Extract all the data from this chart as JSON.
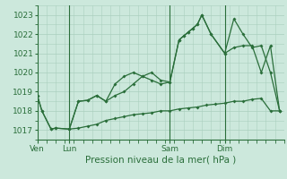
{
  "background_color": "#cce8dc",
  "grid_color": "#aacfbe",
  "line_color": "#2a6e3a",
  "title": "Pression niveau de la mer( hPa )",
  "ylabel_ticks": [
    1017,
    1018,
    1019,
    1020,
    1021,
    1022,
    1023
  ],
  "day_labels": [
    "Ven",
    "Lun",
    "Sam",
    "Dim"
  ],
  "day_positions": [
    0.0,
    3.5,
    14.5,
    20.5
  ],
  "vline_positions": [
    0.0,
    3.5,
    14.5,
    20.5
  ],
  "series1_x": [
    0,
    0.5,
    1.5,
    2.0,
    3.5,
    4.5,
    5.5,
    6.5,
    7.5,
    8.5,
    9.5,
    10.5,
    11.5,
    12.5,
    13.5,
    14.5,
    15.5,
    16.0,
    16.5,
    17.0,
    17.5,
    18.0,
    19.0,
    20.5,
    21.5,
    22.5,
    23.5,
    24.5,
    25.5,
    26.5
  ],
  "series1_y": [
    1018.8,
    1018.0,
    1017.05,
    1017.1,
    1017.05,
    1018.5,
    1018.55,
    1018.8,
    1018.5,
    1019.4,
    1019.8,
    1020.0,
    1019.8,
    1019.6,
    1019.4,
    1019.5,
    1021.7,
    1021.9,
    1022.1,
    1022.3,
    1022.5,
    1023.0,
    1022.0,
    1021.0,
    1022.8,
    1022.0,
    1021.3,
    1021.4,
    1020.0,
    1018.0
  ],
  "series2_x": [
    0,
    0.5,
    1.5,
    2.0,
    3.5,
    4.5,
    5.5,
    6.5,
    7.5,
    8.5,
    9.5,
    10.5,
    11.5,
    12.5,
    13.5,
    14.5,
    15.5,
    16.5,
    17.5,
    18.5,
    19.5,
    20.5,
    21.5,
    22.5,
    23.5,
    24.5,
    25.5,
    26.5
  ],
  "series2_y": [
    1018.8,
    1018.0,
    1017.05,
    1017.1,
    1017.05,
    1017.1,
    1017.2,
    1017.3,
    1017.5,
    1017.6,
    1017.7,
    1017.8,
    1017.85,
    1017.9,
    1018.0,
    1018.0,
    1018.1,
    1018.15,
    1018.2,
    1018.3,
    1018.35,
    1018.4,
    1018.5,
    1018.5,
    1018.6,
    1018.65,
    1018.0,
    1018.0
  ],
  "series3_x": [
    3.5,
    4.5,
    5.5,
    6.5,
    7.5,
    8.5,
    9.5,
    10.5,
    11.5,
    12.5,
    13.5,
    14.5,
    15.5,
    16.0,
    16.5,
    17.0,
    17.5,
    18.0,
    19.0,
    20.5,
    21.5,
    22.5,
    23.5,
    24.5,
    25.5,
    26.5
  ],
  "series3_y": [
    1017.05,
    1018.5,
    1018.55,
    1018.8,
    1018.5,
    1018.8,
    1019.0,
    1019.4,
    1019.8,
    1020.0,
    1019.6,
    1019.5,
    1021.7,
    1021.9,
    1022.1,
    1022.3,
    1022.5,
    1023.0,
    1022.0,
    1021.0,
    1021.3,
    1021.4,
    1021.4,
    1020.0,
    1021.4,
    1018.0
  ],
  "xlim": [
    0,
    27
  ],
  "ylim": [
    1016.5,
    1023.5
  ]
}
